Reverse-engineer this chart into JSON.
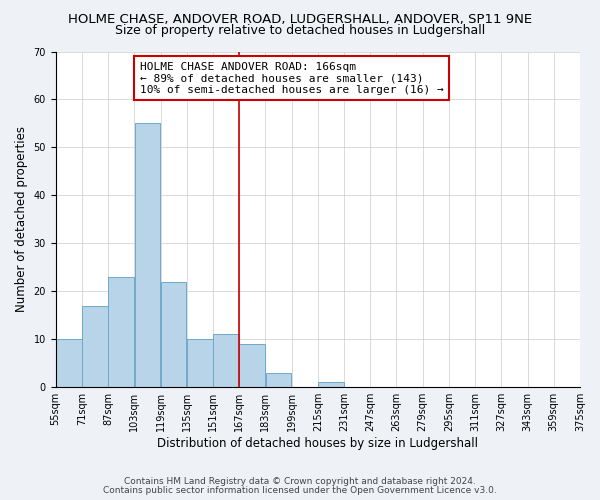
{
  "title": "HOLME CHASE, ANDOVER ROAD, LUDGERSHALL, ANDOVER, SP11 9NE",
  "subtitle": "Size of property relative to detached houses in Ludgershall",
  "xlabel": "Distribution of detached houses by size in Ludgershall",
  "ylabel": "Number of detached properties",
  "bar_left_edges": [
    55,
    71,
    87,
    103,
    119,
    135,
    151,
    167,
    183,
    199,
    215,
    231,
    247,
    263,
    279,
    295,
    311,
    327,
    343,
    359
  ],
  "bar_heights": [
    10,
    17,
    23,
    55,
    22,
    10,
    11,
    9,
    3,
    0,
    1,
    0,
    0,
    0,
    0,
    0,
    0,
    0,
    0,
    0
  ],
  "bin_width": 16,
  "bar_color": "#b8d4e8",
  "bar_edgecolor": "#6fa8c8",
  "ylim": [
    0,
    70
  ],
  "yticks": [
    0,
    10,
    20,
    30,
    40,
    50,
    60,
    70
  ],
  "xtick_labels": [
    "55sqm",
    "71sqm",
    "87sqm",
    "103sqm",
    "119sqm",
    "135sqm",
    "151sqm",
    "167sqm",
    "183sqm",
    "199sqm",
    "215sqm",
    "231sqm",
    "247sqm",
    "263sqm",
    "279sqm",
    "295sqm",
    "311sqm",
    "327sqm",
    "343sqm",
    "359sqm",
    "375sqm"
  ],
  "vline_x": 167,
  "vline_color": "#cc0000",
  "annotation_title": "HOLME CHASE ANDOVER ROAD: 166sqm",
  "annotation_line1": "← 89% of detached houses are smaller (143)",
  "annotation_line2": "10% of semi-detached houses are larger (16) →",
  "footer1": "Contains HM Land Registry data © Crown copyright and database right 2024.",
  "footer2": "Contains public sector information licensed under the Open Government Licence v3.0.",
  "background_color": "#eef2f7",
  "plot_background": "#ffffff",
  "title_fontsize": 9.5,
  "subtitle_fontsize": 9,
  "axis_label_fontsize": 8.5,
  "tick_fontsize": 7,
  "annotation_fontsize": 8,
  "footer_fontsize": 6.5
}
